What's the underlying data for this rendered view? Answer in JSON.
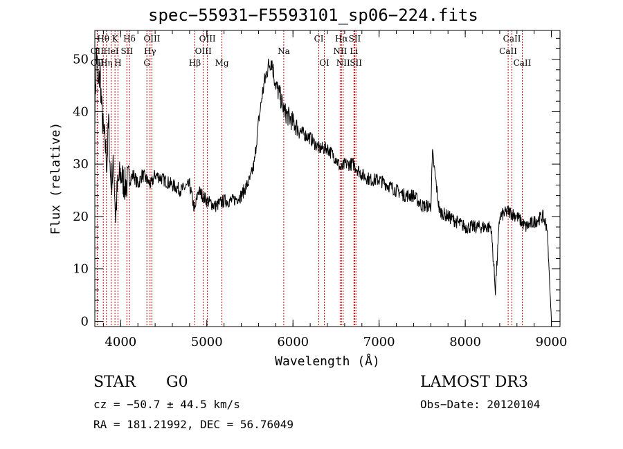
{
  "chart_data": {
    "type": "line",
    "title": "spec−55931−F5593101_sp06−224.fits",
    "xlabel": "Wavelength (Å)",
    "ylabel": "Flux (relative)",
    "xlim": [
      3700,
      9100
    ],
    "ylim": [
      -1,
      55.5
    ],
    "xticks": [
      4000,
      5000,
      6000,
      7000,
      8000,
      9000
    ],
    "yticks": [
      0,
      10,
      20,
      30,
      40,
      50
    ],
    "grid": false,
    "series": [
      {
        "x": [
          3700,
          3720,
          3740,
          3760,
          3780,
          3800,
          3820,
          3840,
          3860,
          3880,
          3900,
          3920,
          3940,
          3960,
          3980,
          4000,
          4050,
          4100,
          4150,
          4200,
          4250,
          4300,
          4350,
          4400,
          4500,
          4600,
          4700,
          4800,
          4860,
          4900,
          5000,
          5100,
          5200,
          5300,
          5400,
          5500,
          5550,
          5600,
          5650,
          5700,
          5750,
          5780,
          5800,
          5850,
          5900,
          5950,
          6000,
          6100,
          6200,
          6300,
          6400,
          6500,
          6560,
          6600,
          6700,
          6800,
          6900,
          7000,
          7100,
          7200,
          7300,
          7400,
          7500,
          7600,
          7620,
          7700,
          7800,
          7900,
          8000,
          8100,
          8200,
          8300,
          8350,
          8400,
          8500,
          8600,
          8700,
          8800,
          8900,
          8950,
          9000
        ],
        "y": [
          40,
          52,
          44,
          48,
          40,
          36,
          34,
          30,
          38,
          28,
          27,
          30,
          20,
          25,
          27,
          28,
          26,
          27,
          28,
          26,
          28,
          27,
          26,
          28,
          27,
          26,
          25,
          26,
          21,
          25,
          23,
          22,
          23,
          23,
          24,
          27,
          30,
          38,
          44,
          48,
          50,
          47,
          45,
          43,
          40,
          39,
          38,
          36,
          35,
          33,
          33,
          31,
          29,
          30,
          30,
          28,
          27,
          27,
          26,
          25,
          24,
          24,
          22,
          22,
          32,
          21,
          20,
          19,
          18,
          18,
          18,
          18,
          6,
          20,
          21,
          20,
          18,
          19,
          20,
          18,
          0
        ]
      }
    ],
    "line_labels": [
      {
        "text": "Hθ",
        "x": 3798,
        "row": 0
      },
      {
        "text": "K",
        "x": 3934,
        "row": 0
      },
      {
        "text": "Hδ",
        "x": 4102,
        "row": 0
      },
      {
        "text": "OIII",
        "x": 4363,
        "row": 0
      },
      {
        "text": "OIII",
        "x": 5007,
        "row": 0
      },
      {
        "text": "CI",
        "x": 6300,
        "row": 0
      },
      {
        "text": "Hα",
        "x": 6563,
        "row": 0
      },
      {
        "text": "SII",
        "x": 6717,
        "row": 0
      },
      {
        "text": "CaII",
        "x": 8542,
        "row": 0
      },
      {
        "text": "OII",
        "x": 3727,
        "row": 1
      },
      {
        "text": "HeI",
        "x": 3889,
        "row": 1
      },
      {
        "text": "SII",
        "x": 4072,
        "row": 1
      },
      {
        "text": "Hγ",
        "x": 4341,
        "row": 1
      },
      {
        "text": "OIII",
        "x": 4959,
        "row": 1
      },
      {
        "text": "Na",
        "x": 5893,
        "row": 1
      },
      {
        "text": "NII",
        "x": 6548,
        "row": 1
      },
      {
        "text": "Li",
        "x": 6708,
        "row": 1
      },
      {
        "text": "CaII",
        "x": 8498,
        "row": 1
      },
      {
        "text": "OII",
        "x": 3729,
        "row": 2
      },
      {
        "text": "Hη",
        "x": 3835,
        "row": 2
      },
      {
        "text": "H",
        "x": 3968,
        "row": 2
      },
      {
        "text": "G",
        "x": 4304,
        "row": 2
      },
      {
        "text": "Hβ",
        "x": 4861,
        "row": 2
      },
      {
        "text": "Mg",
        "x": 5175,
        "row": 2
      },
      {
        "text": "OI",
        "x": 6364,
        "row": 2
      },
      {
        "text": "NII",
        "x": 6583,
        "row": 2
      },
      {
        "text": "SII",
        "x": 6731,
        "row": 2
      },
      {
        "text": "CaII",
        "x": 8662,
        "row": 2
      }
    ],
    "line_color": "#c00000"
  },
  "info": {
    "object_class": "STAR",
    "subclass": "G0",
    "survey": "LAMOST DR3",
    "cz": "cz = −50.7 ± 44.5 km/s",
    "obs_date": "Obs−Date: 20120104",
    "radec": "RA = 181.21992, DEC =  56.76049"
  }
}
